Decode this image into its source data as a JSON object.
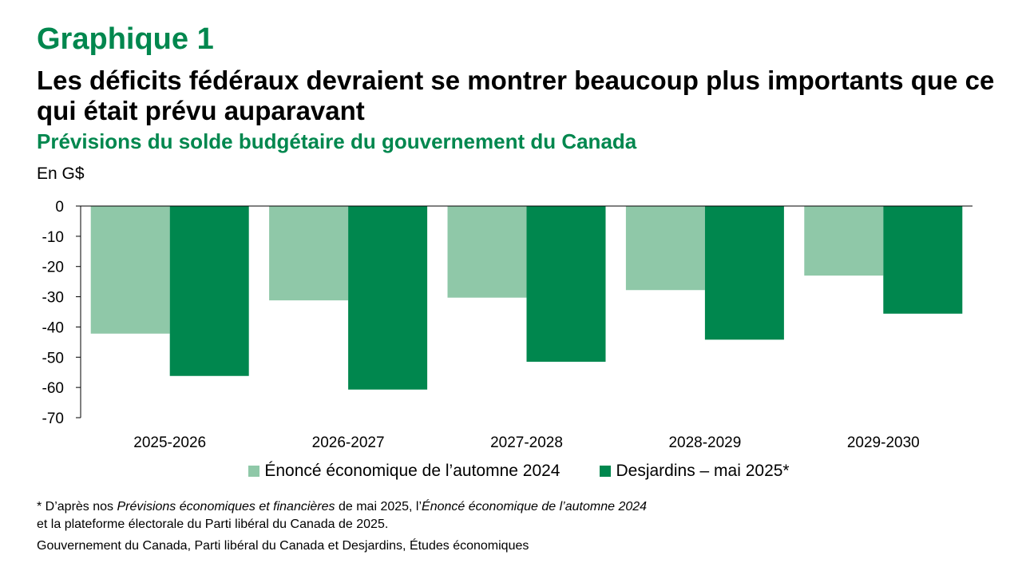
{
  "header": {
    "kicker": "Graphique 1",
    "title": "Les déficits fédéraux devraient se montrer beaucoup plus importants que ce qui était prévu auparavant",
    "subtitle": "Prévisions du solde budgétaire du gouvernement du Canada",
    "unit": "En G$"
  },
  "colors": {
    "light": "#8fc8a8",
    "dark": "#00874e",
    "accent": "#00874e"
  },
  "chart_data": {
    "type": "bar",
    "categories": [
      "2025-2026",
      "2026-2027",
      "2027-2028",
      "2028-2029",
      "2029-2030"
    ],
    "series": [
      {
        "name": "Énoncé économique de l’automne 2024",
        "values": [
          -42.2,
          -31.2,
          -30.3,
          -27.8,
          -23.0
        ]
      },
      {
        "name": "Desjardins – mai 2025*",
        "values": [
          -56.2,
          -60.7,
          -51.5,
          -44.2,
          -35.6
        ]
      }
    ],
    "ylim": [
      -70,
      0
    ],
    "yticks": [
      0,
      -10,
      -20,
      -30,
      -40,
      -50,
      -60,
      -70
    ],
    "ylabel": "En G$",
    "grid": false,
    "legend_position": "bottom"
  },
  "footnote": {
    "prefix": "* D’après nos ",
    "italic1": "Prévisions économiques et financières",
    "middle": " de mai 2025, l’",
    "italic2": "Énoncé économique de l’automne 2024",
    "line2": "et la plateforme électorale du Parti libéral du Canada de 2025."
  },
  "source": "Gouvernement du Canada, Parti libéral du Canada et Desjardins, Études économiques"
}
